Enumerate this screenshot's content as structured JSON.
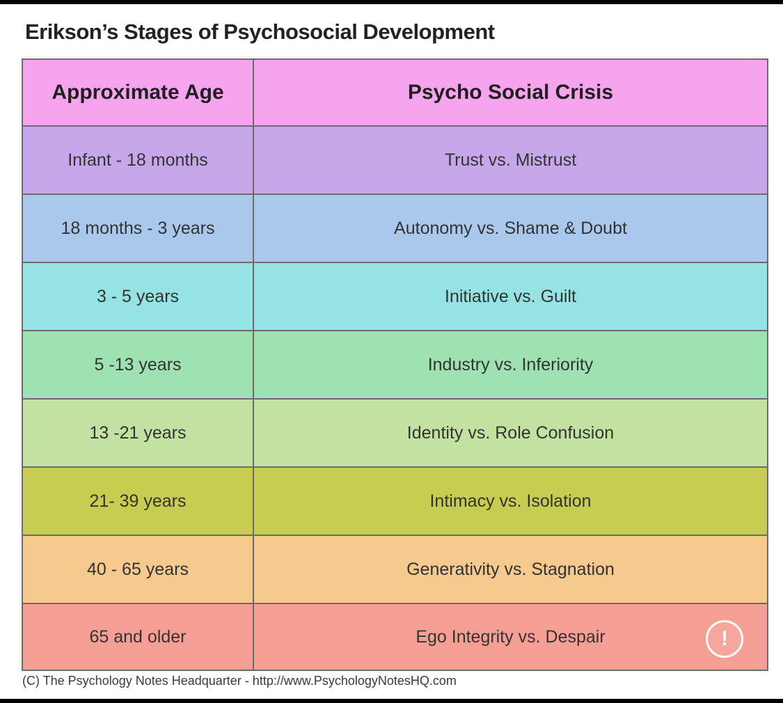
{
  "title": "Erikson’s Stages of Psychosocial Development",
  "table": {
    "headers": {
      "age": "Approximate Age",
      "crisis": "Psycho Social Crisis"
    },
    "header_color": "#f7a4ef",
    "rows": [
      {
        "age": "Infant - 18 months",
        "crisis": "Trust vs. Mistrust",
        "color": "#c8a6ea"
      },
      {
        "age": "18 months - 3 years",
        "crisis": "Autonomy vs. Shame & Doubt",
        "color": "#a9c8ec"
      },
      {
        "age": "3 - 5 years",
        "crisis": "Initiative vs. Guilt",
        "color": "#96e3e3"
      },
      {
        "age": "5 -13 years",
        "crisis": "Industry vs. Inferiority",
        "color": "#9ee2b2"
      },
      {
        "age": "13 -21 years",
        "crisis": "Identity vs. Role Confusion",
        "color": "#c3e2a2"
      },
      {
        "age": "21- 39 years",
        "crisis": "Intimacy vs. Isolation",
        "color": "#c7cd50"
      },
      {
        "age": "40 - 65 years",
        "crisis": "Generativity vs. Stagnation",
        "color": "#f6c98f"
      },
      {
        "age": "65 and older",
        "crisis": "Ego Integrity vs. Despair",
        "color": "#f6a095"
      }
    ]
  },
  "footer": "(C) The Psychology Notes Headquarter - http://www.PsychologyNotesHQ.com",
  "alert": {
    "icon": "exclamation-icon",
    "glyph": "!"
  }
}
